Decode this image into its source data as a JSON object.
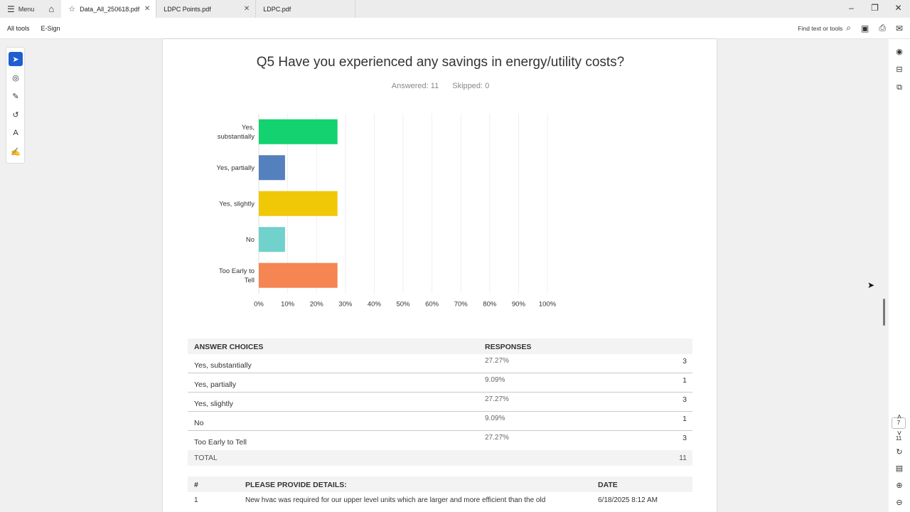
{
  "tabbar": {
    "menu_label": "Menu",
    "tabs": [
      {
        "label": "Data_All_250618.pdf"
      },
      {
        "label": "LDPC Points.pdf"
      },
      {
        "label": "LDPC.pdf"
      }
    ]
  },
  "toolbar": {
    "all_tools": "All tools",
    "esign": "E-Sign",
    "find_text": "Find text or tools"
  },
  "page_nav": {
    "current": "7",
    "total": "11"
  },
  "question": {
    "title": "Q5 Have you experienced any savings in energy/utility costs?",
    "answered": "Answered: 11",
    "skipped": "Skipped: 0"
  },
  "chart_data": {
    "type": "bar",
    "orientation": "horizontal",
    "categories": [
      "Yes, substantially",
      "Yes, partially",
      "Yes, slightly",
      "No",
      "Too Early to Tell"
    ],
    "category_lines": [
      [
        "Yes,",
        "substantially"
      ],
      [
        "Yes, partially"
      ],
      [
        "Yes, slightly"
      ],
      [
        "No"
      ],
      [
        "Too Early to",
        "Tell"
      ]
    ],
    "values": [
      27.27,
      9.09,
      27.27,
      9.09,
      27.27
    ],
    "colors": [
      "#12d36f",
      "#5580be",
      "#f0c808",
      "#70d2ca",
      "#f58553"
    ],
    "xlim": [
      0,
      100
    ],
    "x_ticks": [
      "0%",
      "10%",
      "20%",
      "30%",
      "40%",
      "50%",
      "60%",
      "70%",
      "80%",
      "90%",
      "100%"
    ],
    "title": "",
    "xlabel": "",
    "ylabel": ""
  },
  "answers": {
    "header_choices": "ANSWER CHOICES",
    "header_responses": "RESPONSES",
    "rows": [
      {
        "choice": "Yes, substantially",
        "pct": "27.27%",
        "count": "3"
      },
      {
        "choice": "Yes, partially",
        "pct": "9.09%",
        "count": "1"
      },
      {
        "choice": "Yes, slightly",
        "pct": "27.27%",
        "count": "3"
      },
      {
        "choice": "No",
        "pct": "9.09%",
        "count": "1"
      },
      {
        "choice": "Too Early to Tell",
        "pct": "27.27%",
        "count": "3"
      }
    ],
    "total_label": "TOTAL",
    "total_count": "11"
  },
  "details": {
    "header_num": "#",
    "header_details": "PLEASE PROVIDE DETAILS:",
    "header_date": "DATE",
    "rows": [
      {
        "num": "1",
        "text": "New hvac was required for our upper level units which are larger and more efficient than the old",
        "date": "6/18/2025 8:12 AM"
      }
    ]
  }
}
